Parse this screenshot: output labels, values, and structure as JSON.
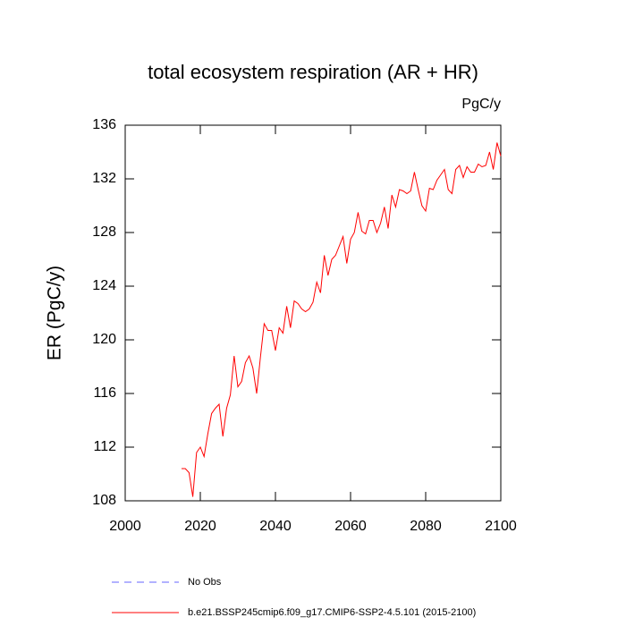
{
  "chart_data": {
    "type": "line",
    "title": "total ecosystem respiration (AR + HR)",
    "units_label": "PgC/y",
    "ylabel": "ER  (PgC/y)",
    "xlim": [
      2000,
      2100
    ],
    "xticks": [
      2000,
      2020,
      2040,
      2060,
      2080,
      2100
    ],
    "ylim": [
      108,
      136
    ],
    "yticks": [
      108,
      112,
      116,
      120,
      124,
      128,
      132,
      136
    ],
    "x": [
      2015,
      2016,
      2017,
      2018,
      2019,
      2020,
      2021,
      2022,
      2023,
      2024,
      2025,
      2026,
      2027,
      2028,
      2029,
      2030,
      2031,
      2032,
      2033,
      2034,
      2035,
      2036,
      2037,
      2038,
      2039,
      2040,
      2041,
      2042,
      2043,
      2044,
      2045,
      2046,
      2047,
      2048,
      2049,
      2050,
      2051,
      2052,
      2053,
      2054,
      2055,
      2056,
      2057,
      2058,
      2059,
      2060,
      2061,
      2062,
      2063,
      2064,
      2065,
      2066,
      2067,
      2068,
      2069,
      2070,
      2071,
      2072,
      2073,
      2074,
      2075,
      2076,
      2077,
      2078,
      2079,
      2080,
      2081,
      2082,
      2083,
      2084,
      2085,
      2086,
      2087,
      2088,
      2089,
      2090,
      2091,
      2092,
      2093,
      2094,
      2095,
      2096,
      2097,
      2098,
      2099,
      2100
    ],
    "series": [
      {
        "name": "No Obs",
        "color": "#6666ff",
        "dashed": true,
        "values": [
          null,
          null,
          null,
          null,
          null,
          null,
          null,
          null,
          null,
          null,
          null,
          null,
          null,
          null,
          null,
          null,
          null,
          null,
          null,
          null,
          null,
          null,
          null,
          null,
          null,
          null,
          null,
          null,
          null,
          null,
          null,
          null,
          null,
          null,
          null,
          null,
          null,
          null,
          null,
          null,
          null,
          null,
          null,
          null,
          null,
          null,
          null,
          null,
          null,
          null,
          null,
          null,
          null,
          null,
          null,
          null,
          null,
          null,
          null,
          null,
          null,
          null,
          null,
          null,
          null,
          null,
          null,
          null,
          null,
          null,
          null,
          null,
          null,
          null,
          null,
          null,
          null,
          null,
          null,
          null,
          null,
          null,
          null,
          null,
          null,
          null
        ]
      },
      {
        "name": "b.e21.BSSP245cmip6.f09_g17.CMIP6-SSP2-4.5.101 (2015-2100)",
        "color": "#ff0000",
        "dashed": false,
        "values": [
          110.4,
          110.4,
          110.1,
          108.3,
          111.6,
          112.0,
          111.3,
          113.0,
          114.5,
          114.9,
          115.2,
          112.8,
          114.9,
          115.9,
          118.8,
          116.5,
          116.9,
          118.3,
          118.8,
          117.9,
          116.0,
          118.7,
          121.2,
          120.7,
          120.7,
          119.2,
          120.9,
          120.5,
          122.5,
          120.9,
          122.9,
          122.7,
          122.3,
          122.1,
          122.3,
          122.8,
          124.3,
          123.5,
          126.3,
          124.8,
          126.0,
          126.3,
          127.0,
          127.7,
          125.7,
          127.5,
          128.0,
          129.5,
          128.1,
          127.9,
          128.9,
          128.9,
          128.0,
          128.7,
          129.9,
          128.3,
          130.8,
          129.9,
          131.2,
          131.1,
          130.9,
          131.1,
          132.5,
          131.2,
          130.0,
          129.6,
          131.3,
          131.2,
          131.9,
          132.3,
          132.7,
          131.2,
          130.9,
          132.7,
          133.0,
          132.1,
          132.9,
          132.5,
          132.5,
          133.1,
          132.9,
          133.0,
          134.0,
          132.7,
          134.7,
          133.7
        ]
      }
    ]
  }
}
